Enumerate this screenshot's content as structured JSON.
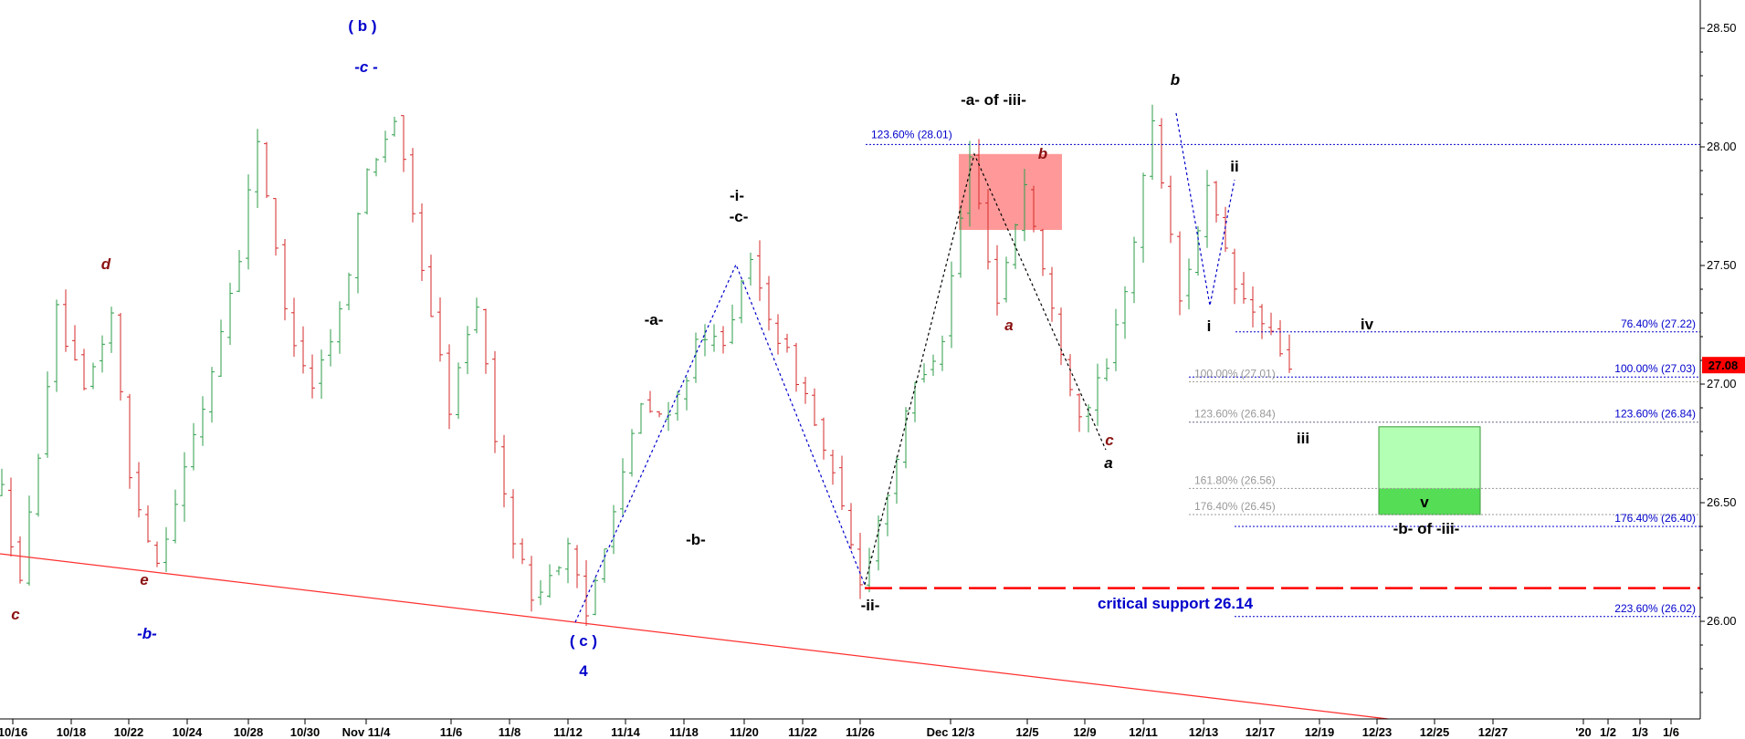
{
  "chart_data": {
    "type": "candlestick",
    "y_axis": {
      "range": [
        25.62,
        28.62
      ],
      "ticks": [
        "26.00",
        "26.50",
        "27.00",
        "27.50",
        "28.00",
        "28.50"
      ],
      "side": "right",
      "last_price": "27.08",
      "last_price_color": "#ff0000"
    },
    "x_axis": {
      "tick_labels": [
        "10/16",
        "10/18",
        "10/22",
        "10/24",
        "10/28",
        "10/30",
        "Nov 11/4",
        "11/6",
        "11/8",
        "11/12",
        "11/14",
        "11/18",
        "11/20",
        "11/22",
        "11/26",
        "Dec 12/3",
        "12/5",
        "12/9",
        "12/11",
        "12/13",
        "12/17",
        "12/19",
        "12/23",
        "12/25",
        "12/27",
        "'20",
        "1/2",
        "1/3",
        "1/6"
      ]
    },
    "grid": false,
    "colors": {
      "up": "#2e9e4a",
      "down": "#d42a2a",
      "blue": "#0000cc",
      "maroon": "#8b1010",
      "black": "#000000"
    },
    "price_path_anchors": [
      {
        "i": 0,
        "v": 26.55
      },
      {
        "i": 2,
        "v": 26.15
      },
      {
        "i": 6,
        "v": 27.3
      },
      {
        "i": 9,
        "v": 26.95
      },
      {
        "i": 12,
        "v": 27.3
      },
      {
        "i": 14,
        "v": 26.6
      },
      {
        "i": 17,
        "v": 26.25
      },
      {
        "i": 22,
        "v": 26.9
      },
      {
        "i": 26,
        "v": 27.55
      },
      {
        "i": 28,
        "v": 28.05
      },
      {
        "i": 31,
        "v": 27.3
      },
      {
        "i": 34,
        "v": 27.0
      },
      {
        "i": 37,
        "v": 27.3
      },
      {
        "i": 40,
        "v": 27.9
      },
      {
        "i": 43,
        "v": 28.12
      },
      {
        "i": 46,
        "v": 27.5
      },
      {
        "i": 49,
        "v": 26.9
      },
      {
        "i": 52,
        "v": 27.35
      },
      {
        "i": 55,
        "v": 26.5
      },
      {
        "i": 58,
        "v": 26.1
      },
      {
        "i": 62,
        "v": 26.3
      },
      {
        "i": 64,
        "v": 26.02
      },
      {
        "i": 67,
        "v": 26.5
      },
      {
        "i": 70,
        "v": 26.9
      },
      {
        "i": 73,
        "v": 26.85
      },
      {
        "i": 76,
        "v": 27.15
      },
      {
        "i": 79,
        "v": 27.2
      },
      {
        "i": 82,
        "v": 27.5
      },
      {
        "i": 85,
        "v": 27.2
      },
      {
        "i": 88,
        "v": 26.95
      },
      {
        "i": 91,
        "v": 26.6
      },
      {
        "i": 94,
        "v": 26.17
      },
      {
        "i": 97,
        "v": 26.55
      },
      {
        "i": 100,
        "v": 27.0
      },
      {
        "i": 103,
        "v": 27.2
      },
      {
        "i": 106,
        "v": 27.95
      },
      {
        "i": 109,
        "v": 27.35
      },
      {
        "i": 112,
        "v": 27.85
      },
      {
        "i": 115,
        "v": 27.3
      },
      {
        "i": 118,
        "v": 26.87
      },
      {
        "i": 121,
        "v": 27.05
      },
      {
        "i": 124,
        "v": 27.6
      },
      {
        "i": 126,
        "v": 28.12
      },
      {
        "i": 129,
        "v": 27.35
      },
      {
        "i": 132,
        "v": 27.82
      },
      {
        "i": 135,
        "v": 27.4
      },
      {
        "i": 138,
        "v": 27.25
      },
      {
        "i": 141,
        "v": 27.08
      }
    ],
    "fib_levels_right": [
      {
        "label": "76.40% (27.22)",
        "value": 27.22
      },
      {
        "label": "100.00% (27.03)",
        "value": 27.03
      },
      {
        "label": "123.60% (26.84)",
        "value": 26.84
      },
      {
        "label": "176.40% (26.40)",
        "value": 26.4
      },
      {
        "label": "223.60% (26.02)",
        "value": 26.02
      }
    ],
    "fib_levels_mid": [
      {
        "label": "100.00% (27.01)",
        "value": 27.01
      },
      {
        "label": "123.60% (26.84)",
        "value": 26.84
      },
      {
        "label": "161.80% (26.56)",
        "value": 26.56
      },
      {
        "label": "176.40% (26.45)",
        "value": 26.45
      }
    ],
    "fib_level_top": {
      "label": "123.60% (28.01)",
      "value": 28.01
    },
    "critical_support": {
      "label": "critical support 26.14",
      "value": 26.14
    },
    "zones": [
      {
        "name": "resistance-zone",
        "from": 27.65,
        "to": 27.97,
        "color": "#ff9999"
      },
      {
        "name": "target-zone-light",
        "from": 26.56,
        "to": 26.82,
        "color": "#b3ffb3"
      },
      {
        "name": "target-zone-dark",
        "from": 26.45,
        "to": 26.56,
        "color": "#55dd55"
      }
    ],
    "wave_labels": [
      {
        "text": "( b )",
        "color": "#0000cc"
      },
      {
        "text": "-c -",
        "color": "#0000cc"
      },
      {
        "text": "d",
        "color": "#8b1010"
      },
      {
        "text": "e",
        "color": "#8b1010"
      },
      {
        "text": "c",
        "color": "#8b1010"
      },
      {
        "text": "-b-",
        "color": "#0000cc"
      },
      {
        "text": "( c )",
        "color": "#0000cc"
      },
      {
        "text": "4",
        "color": "#0000cc"
      },
      {
        "text": "-a-",
        "color": "#000000"
      },
      {
        "text": "-b-",
        "color": "#000000"
      },
      {
        "text": "-i-",
        "color": "#000000"
      },
      {
        "text": "-c-",
        "color": "#000000"
      },
      {
        "text": "-ii-",
        "color": "#000000"
      },
      {
        "text": "-a- of -iii-",
        "color": "#000000"
      },
      {
        "text": "b",
        "color": "#8b1010"
      },
      {
        "text": "a",
        "color": "#8b1010"
      },
      {
        "text": "c",
        "color": "#8b1010"
      },
      {
        "text": "a",
        "color": "#000000"
      },
      {
        "text": "b",
        "color": "#000000"
      },
      {
        "text": "ii",
        "color": "#000000"
      },
      {
        "text": "i",
        "color": "#000000"
      },
      {
        "text": "iv",
        "color": "#000000"
      },
      {
        "text": "iii",
        "color": "#000000"
      },
      {
        "text": "v",
        "color": "#000000"
      },
      {
        "text": "-b- of -iii-",
        "color": "#000000"
      }
    ]
  }
}
